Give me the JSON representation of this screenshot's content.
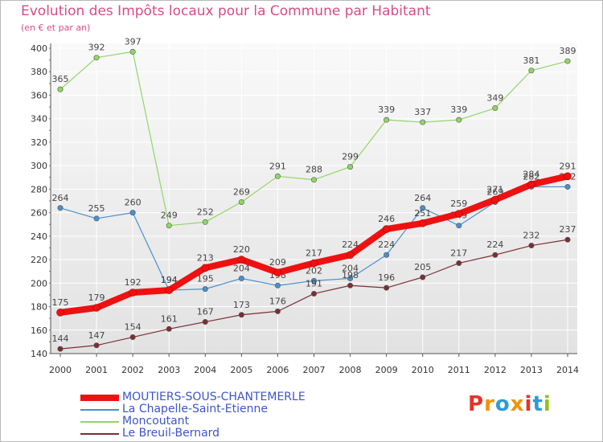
{
  "title": "Evolution des Impôts locaux pour la Commune par Habitant",
  "subtitle": "(en € et par an)",
  "brand": {
    "text": "Proxiti",
    "letter_colors": [
      "#e6332a",
      "#f39200",
      "#2d9cd6",
      "#f39200",
      "#e6332a",
      "#2d9cd6",
      "#95c11f"
    ]
  },
  "chart_data": {
    "type": "line",
    "title": "Evolution des Impôts locaux pour la Commune par Habitant",
    "ylabel": "(en € et par an)",
    "xlabel": "",
    "x": [
      "2000",
      "2001",
      "2002",
      "2003",
      "2004",
      "2005",
      "2006",
      "2007",
      "2008",
      "2009",
      "2010",
      "2011",
      "2012",
      "2013",
      "2014"
    ],
    "ylim": [
      140,
      400
    ],
    "yticks": [
      140,
      160,
      180,
      200,
      220,
      240,
      260,
      280,
      300,
      320,
      340,
      360,
      380,
      400
    ],
    "grid": true,
    "legend_position": "bottom-left",
    "series": [
      {
        "name": "MOUTIERS-SOUS-CHANTEMERLE",
        "color": "#ee1111",
        "emphasis": true,
        "values": [
          175,
          179,
          192,
          194,
          213,
          220,
          209,
          217,
          224,
          246,
          251,
          259,
          271,
          284,
          291
        ],
        "labels": [
          "175",
          "179",
          "192",
          "194",
          "213",
          "220",
          "209",
          "217",
          "224",
          "246",
          "251",
          "259",
          "271",
          "284",
          "291"
        ]
      },
      {
        "name": "La Chapelle-Saint-Etienne",
        "color": "#4a8fd0",
        "values": [
          264,
          255,
          260,
          194,
          195,
          204,
          198,
          202,
          204,
          224,
          264,
          249,
          269,
          282,
          282
        ],
        "labels": [
          "264",
          "255",
          "260",
          "194",
          "195",
          "204",
          "198",
          "202",
          "204",
          "224",
          "264",
          "249",
          "269",
          "282",
          "282"
        ]
      },
      {
        "name": "Moncoutant",
        "color": "#92d665",
        "values": [
          365,
          392,
          397,
          249,
          252,
          269,
          291,
          288,
          299,
          339,
          337,
          339,
          349,
          381,
          389
        ],
        "labels": [
          "365",
          "392",
          "397",
          "249",
          "252",
          "269",
          "291",
          "288",
          "299",
          "339",
          "337",
          "339",
          "349",
          "381",
          "389"
        ]
      },
      {
        "name": "Le Breuil-Bernard",
        "color": "#7a2f35",
        "values": [
          144,
          147,
          154,
          161,
          167,
          173,
          176,
          191,
          198,
          196,
          205,
          217,
          224,
          232,
          237
        ],
        "labels": [
          "144",
          "147",
          "154",
          "161",
          "167",
          "173",
          "176",
          "191",
          "198",
          "196",
          "205",
          "217",
          "224",
          "232",
          "237"
        ]
      }
    ]
  }
}
